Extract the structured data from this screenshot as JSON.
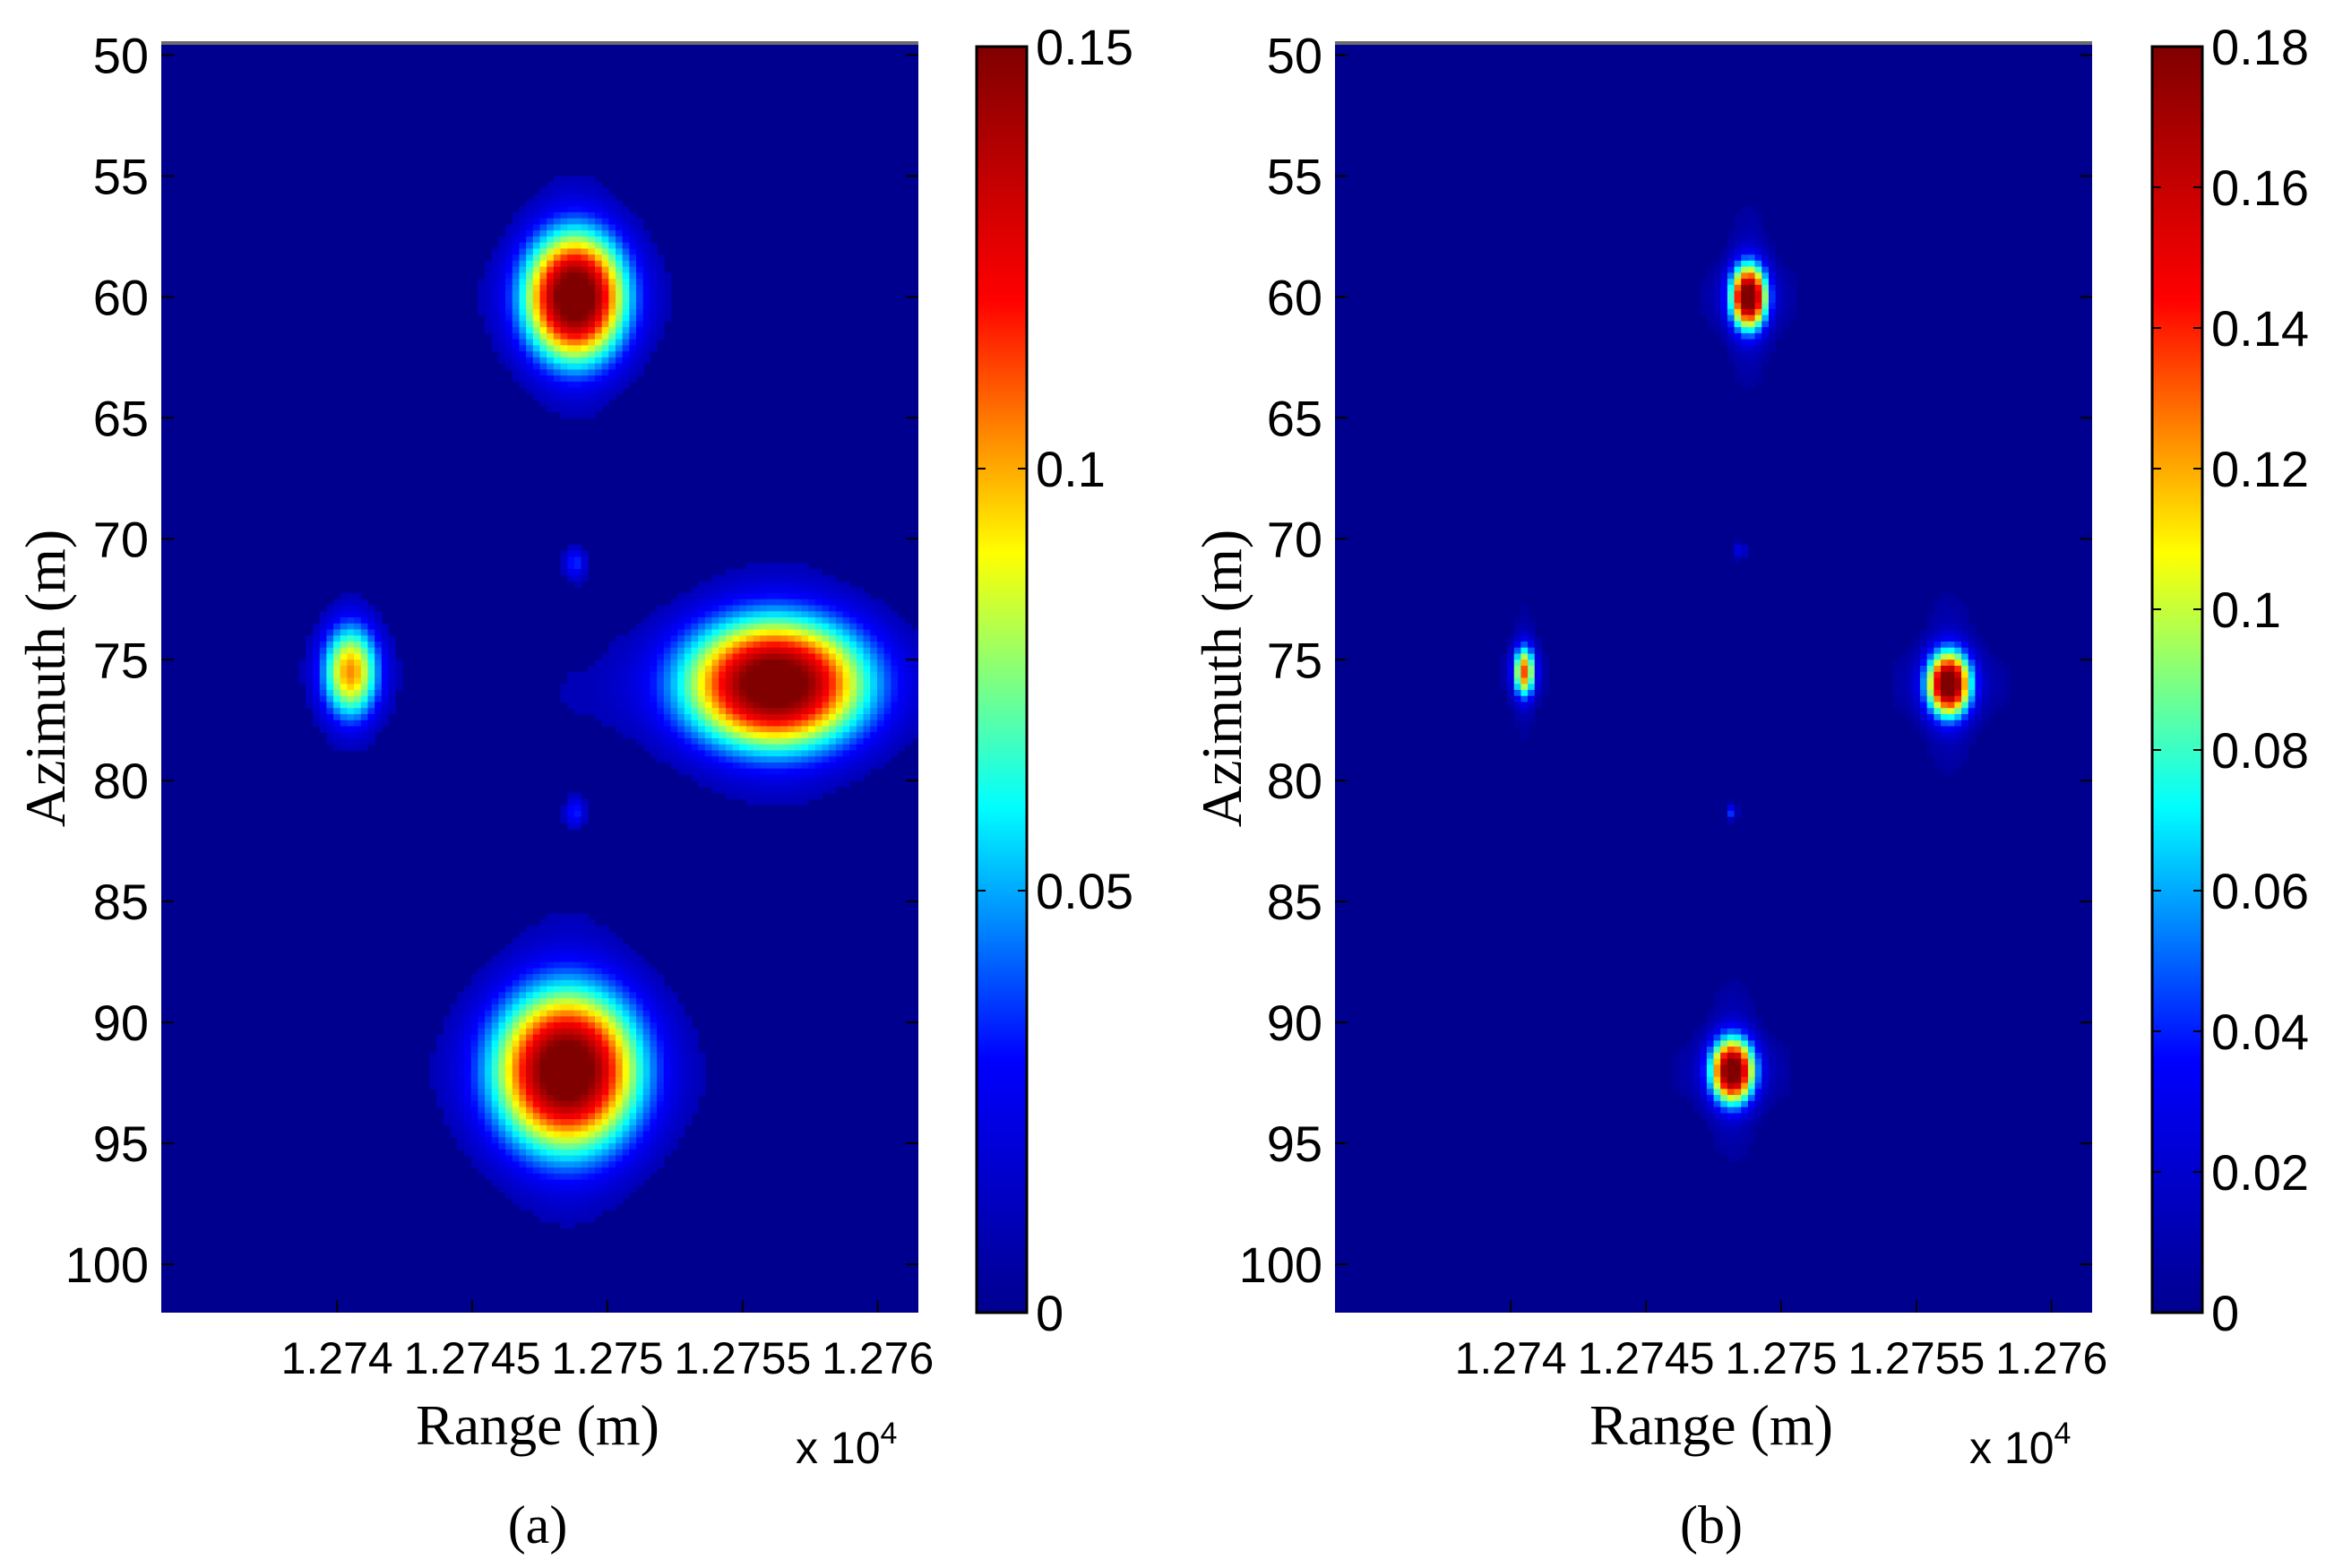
{
  "chart_data": [
    {
      "id": "a",
      "type": "heatmap",
      "caption": "(a)",
      "xlabel": "Range (m)",
      "ylabel": "Azimuth (m)",
      "x_multiplier": "x 10",
      "x_multiplier_exp": "4",
      "xlim": [
        1.27335,
        1.27615
      ],
      "ylim": [
        102,
        49.5
      ],
      "x_ticks": [
        1.274,
        1.2745,
        1.275,
        1.2755,
        1.276
      ],
      "x_tick_labels": [
        "1.274",
        "1.2745",
        "1.275",
        "1.2755",
        "1.276"
      ],
      "y_ticks": [
        50,
        55,
        60,
        65,
        70,
        75,
        80,
        85,
        90,
        95,
        100
      ],
      "y_tick_labels": [
        "50",
        "55",
        "60",
        "65",
        "70",
        "75",
        "80",
        "85",
        "90",
        "95",
        "100"
      ],
      "colorbar": {
        "min": 0,
        "max": 0.15,
        "ticks": [
          0,
          0.05,
          0.1,
          0.15
        ],
        "tick_labels": [
          "0",
          "0.05",
          "0.1",
          "0.15"
        ]
      },
      "colormap": [
        "#00008f",
        "#0000ff",
        "#00ffff",
        "#ffff00",
        "#ff0000",
        "#800000"
      ],
      "background_value": 0.007,
      "points": [
        {
          "range": 1.27488,
          "azimuth": 60,
          "peak": 0.15,
          "spread_range": 0.00014,
          "spread_azimuth": 2
        },
        {
          "range": 1.27488,
          "azimuth": 71,
          "peak": 0.03,
          "spread_range": 3e-05,
          "spread_azimuth": 0.5
        },
        {
          "range": 1.27405,
          "azimuth": 75.5,
          "peak": 0.09,
          "spread_range": 8e-05,
          "spread_azimuth": 1.5
        },
        {
          "range": 1.27562,
          "azimuth": 76,
          "peak": 0.15,
          "spread_range": 0.00025,
          "spread_azimuth": 2
        },
        {
          "range": 1.27488,
          "azimuth": 81.3,
          "peak": 0.03,
          "spread_range": 3e-05,
          "spread_azimuth": 0.5
        },
        {
          "range": 1.27485,
          "azimuth": 92,
          "peak": 0.15,
          "spread_range": 0.0002,
          "spread_azimuth": 2.5
        }
      ]
    },
    {
      "id": "b",
      "type": "heatmap",
      "caption": "(b)",
      "xlabel": "Range (m)",
      "ylabel": "Azimuth (m)",
      "x_multiplier": "x 10",
      "x_multiplier_exp": "4",
      "xlim": [
        1.27335,
        1.27615
      ],
      "ylim": [
        102,
        49.5
      ],
      "x_ticks": [
        1.274,
        1.2745,
        1.275,
        1.2755,
        1.276
      ],
      "x_tick_labels": [
        "1.274",
        "1.2745",
        "1.275",
        "1.2755",
        "1.276"
      ],
      "y_ticks": [
        50,
        55,
        60,
        65,
        70,
        75,
        80,
        85,
        90,
        95,
        100
      ],
      "y_tick_labels": [
        "50",
        "55",
        "60",
        "65",
        "70",
        "75",
        "80",
        "85",
        "90",
        "95",
        "100"
      ],
      "colorbar": {
        "min": 0,
        "max": 0.18,
        "ticks": [
          0,
          0.02,
          0.04,
          0.06,
          0.08,
          0.1,
          0.12,
          0.14,
          0.16,
          0.18
        ],
        "tick_labels": [
          "0",
          "0.02",
          "0.04",
          "0.06",
          "0.08",
          "0.1",
          "0.12",
          "0.14",
          "0.16",
          "0.18"
        ]
      },
      "colormap": [
        "#00008f",
        "#0000ff",
        "#00ffff",
        "#ffff00",
        "#ff0000",
        "#800000"
      ],
      "background_value": 0.003,
      "points": [
        {
          "range": 1.27488,
          "azimuth": 60,
          "peak": 0.18,
          "spread_range": 5e-05,
          "spread_azimuth": 1
        },
        {
          "range": 1.27485,
          "azimuth": 70.5,
          "peak": 0.05,
          "spread_range": 1e-05,
          "spread_azimuth": 0.2
        },
        {
          "range": 1.27405,
          "azimuth": 75.5,
          "peak": 0.12,
          "spread_range": 3e-05,
          "spread_azimuth": 0.8
        },
        {
          "range": 1.27562,
          "azimuth": 76,
          "peak": 0.18,
          "spread_range": 6e-05,
          "spread_azimuth": 1
        },
        {
          "range": 1.27482,
          "azimuth": 81.3,
          "peak": 0.05,
          "spread_range": 1e-05,
          "spread_azimuth": 0.2
        },
        {
          "range": 1.27482,
          "azimuth": 92,
          "peak": 0.18,
          "spread_range": 6e-05,
          "spread_azimuth": 1
        }
      ]
    }
  ]
}
